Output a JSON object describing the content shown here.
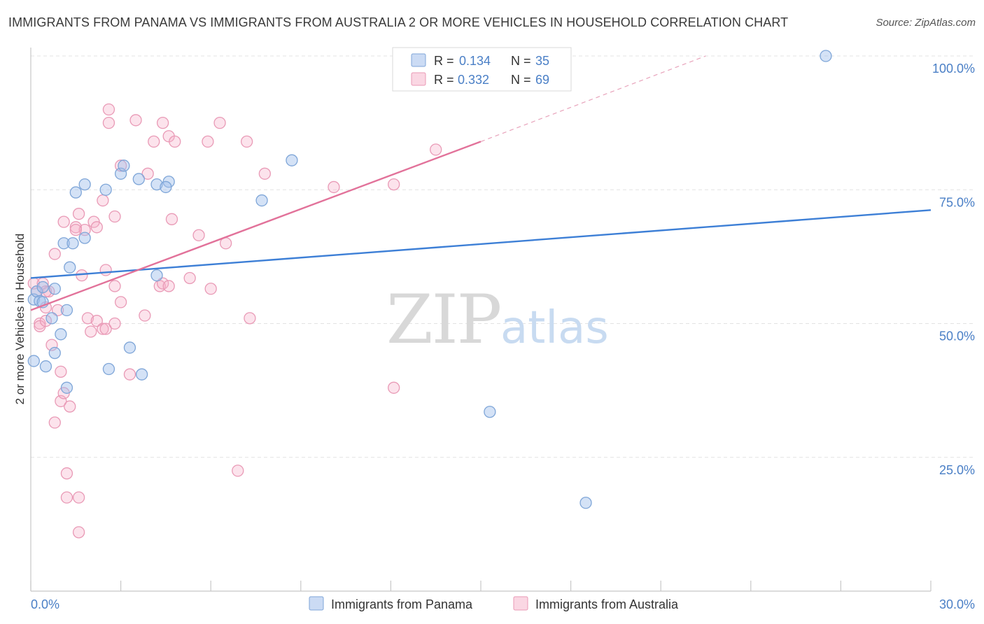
{
  "chart_data": {
    "type": "scatter",
    "title": "IMMIGRANTS FROM PANAMA VS IMMIGRANTS FROM AUSTRALIA 2 OR MORE VEHICLES IN HOUSEHOLD CORRELATION CHART",
    "source": "Source: ZipAtlas.com",
    "xlabel": "",
    "ylabel": "2 or more Vehicles in Household",
    "xlim": [
      0,
      30
    ],
    "ylim": [
      0,
      102
    ],
    "x_tick_labels": [
      "0.0%",
      "30.0%"
    ],
    "y_ticks": [
      25,
      50,
      75,
      100
    ],
    "y_tick_labels": [
      "25.0%",
      "50.0%",
      "75.0%",
      "100.0%"
    ],
    "watermark": {
      "zip": "ZIP",
      "atlas": "atlas"
    },
    "legend": [
      {
        "r_label": "R =",
        "r_value": "0.134",
        "n_label": "N =",
        "n_value": "35"
      },
      {
        "r_label": "R =",
        "r_value": "0.332",
        "n_label": "N =",
        "n_value": "69"
      }
    ],
    "series": [
      {
        "name": "Immigrants from Panama",
        "color": "#3d7fd6",
        "trend": {
          "x0": 0,
          "y0": 58.5,
          "x1": 30,
          "y1": 71.2
        },
        "points": [
          [
            0.1,
            54.5
          ],
          [
            0.1,
            43
          ],
          [
            0.2,
            56
          ],
          [
            0.4,
            56.8
          ],
          [
            0.3,
            54.2
          ],
          [
            0.4,
            54
          ],
          [
            0.8,
            56.5
          ],
          [
            0.8,
            44.5
          ],
          [
            0.7,
            51
          ],
          [
            0.5,
            42
          ],
          [
            1.0,
            48
          ],
          [
            1.1,
            65
          ],
          [
            1.2,
            52.5
          ],
          [
            1.3,
            60.5
          ],
          [
            1.4,
            65
          ],
          [
            1.5,
            74.5
          ],
          [
            1.8,
            66
          ],
          [
            1.8,
            76
          ],
          [
            2.5,
            75
          ],
          [
            3.0,
            78
          ],
          [
            3.1,
            79.5
          ],
          [
            3.3,
            45.5
          ],
          [
            3.6,
            77
          ],
          [
            4.2,
            59
          ],
          [
            4.2,
            76
          ],
          [
            4.6,
            76.5
          ],
          [
            4.5,
            75.5
          ],
          [
            7.7,
            73
          ],
          [
            8.7,
            80.5
          ],
          [
            1.2,
            38
          ],
          [
            2.6,
            41.5
          ],
          [
            3.7,
            40.5
          ],
          [
            15.3,
            33.5
          ],
          [
            18.5,
            16.5
          ],
          [
            26.5,
            100
          ]
        ]
      },
      {
        "name": "Immigrants from Australia",
        "color": "#e2729a",
        "trend": {
          "x0": 0,
          "y0": 52.5,
          "x1": 15,
          "y1": 84,
          "dash_to": {
            "x": 22.5,
            "y": 100
          }
        },
        "points": [
          [
            0.1,
            57.5
          ],
          [
            0.2,
            56
          ],
          [
            0.3,
            50
          ],
          [
            0.3,
            49.5
          ],
          [
            0.5,
            53
          ],
          [
            0.5,
            50.5
          ],
          [
            0.6,
            56
          ],
          [
            0.7,
            46
          ],
          [
            0.8,
            63
          ],
          [
            0.9,
            52.5
          ],
          [
            1.0,
            35.5
          ],
          [
            0.8,
            31.5
          ],
          [
            1.0,
            41
          ],
          [
            1.1,
            37
          ],
          [
            1.1,
            69
          ],
          [
            1.3,
            34.5
          ],
          [
            1.2,
            22
          ],
          [
            1.2,
            17.5
          ],
          [
            1.5,
            68
          ],
          [
            1.6,
            70.5
          ],
          [
            1.7,
            59
          ],
          [
            1.8,
            67.5
          ],
          [
            1.9,
            51
          ],
          [
            2.0,
            48.5
          ],
          [
            2.1,
            69
          ],
          [
            2.2,
            68
          ],
          [
            2.2,
            50.5
          ],
          [
            2.4,
            73
          ],
          [
            2.4,
            49
          ],
          [
            2.5,
            49
          ],
          [
            2.5,
            60
          ],
          [
            2.6,
            90
          ],
          [
            2.6,
            87.5
          ],
          [
            2.8,
            70
          ],
          [
            2.8,
            57
          ],
          [
            2.8,
            50
          ],
          [
            3.0,
            54
          ],
          [
            3.0,
            79.5
          ],
          [
            3.3,
            40.5
          ],
          [
            3.5,
            88
          ],
          [
            3.8,
            51.5
          ],
          [
            3.9,
            78
          ],
          [
            4.1,
            84
          ],
          [
            4.3,
            57
          ],
          [
            4.4,
            57.5
          ],
          [
            4.4,
            87.5
          ],
          [
            4.6,
            85
          ],
          [
            4.7,
            69.5
          ],
          [
            4.8,
            84
          ],
          [
            5.3,
            58.5
          ],
          [
            5.6,
            66.5
          ],
          [
            5.9,
            84
          ],
          [
            6.0,
            56.5
          ],
          [
            6.3,
            87.5
          ],
          [
            6.5,
            65
          ],
          [
            7.2,
            84
          ],
          [
            7.3,
            51
          ],
          [
            7.8,
            78
          ],
          [
            10.1,
            75.5
          ],
          [
            12.1,
            38
          ],
          [
            12.1,
            76
          ],
          [
            13.5,
            82.5
          ],
          [
            6.9,
            22.5
          ],
          [
            1.6,
            17.5
          ],
          [
            1.6,
            11
          ],
          [
            4.6,
            57
          ],
          [
            0.4,
            57.5
          ],
          [
            0.5,
            56
          ],
          [
            1.5,
            67.5
          ]
        ]
      }
    ]
  }
}
